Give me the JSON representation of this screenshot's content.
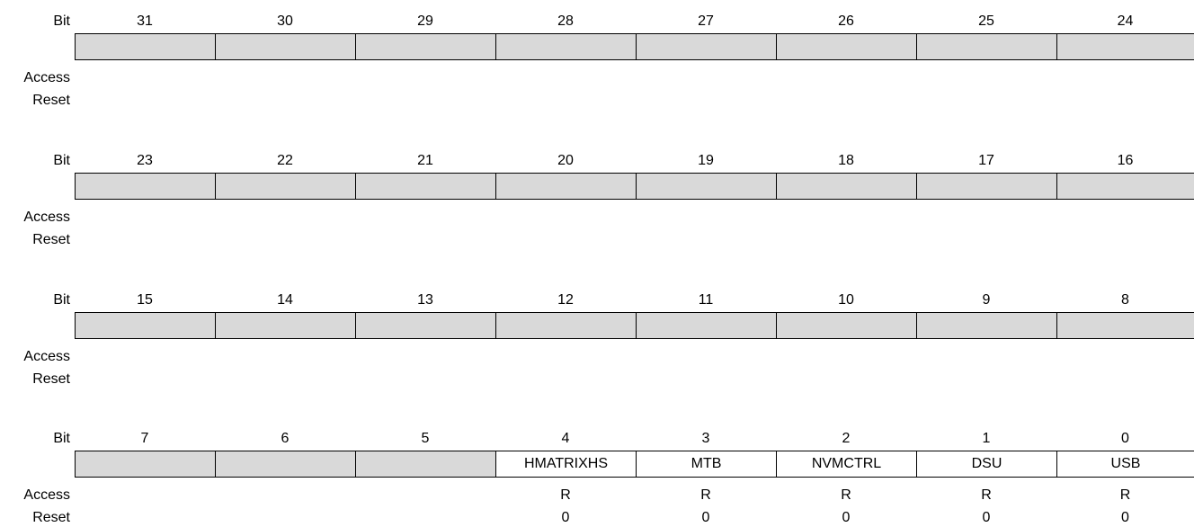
{
  "labels": {
    "bit": "Bit",
    "access": "Access",
    "reset": "Reset"
  },
  "colors": {
    "reserved_fill": "#d9d9d9",
    "field_fill": "#ffffff",
    "border": "#000000"
  },
  "byte_rows": [
    {
      "bits": [
        "31",
        "30",
        "29",
        "28",
        "27",
        "26",
        "25",
        "24"
      ],
      "fields": [
        "",
        "",
        "",
        "",
        "",
        "",
        "",
        ""
      ],
      "access": [
        "",
        "",
        "",
        "",
        "",
        "",
        "",
        ""
      ],
      "reset": [
        "",
        "",
        "",
        "",
        "",
        "",
        "",
        ""
      ]
    },
    {
      "bits": [
        "23",
        "22",
        "21",
        "20",
        "19",
        "18",
        "17",
        "16"
      ],
      "fields": [
        "",
        "",
        "",
        "",
        "",
        "",
        "",
        ""
      ],
      "access": [
        "",
        "",
        "",
        "",
        "",
        "",
        "",
        ""
      ],
      "reset": [
        "",
        "",
        "",
        "",
        "",
        "",
        "",
        ""
      ]
    },
    {
      "bits": [
        "15",
        "14",
        "13",
        "12",
        "11",
        "10",
        "9",
        "8"
      ],
      "fields": [
        "",
        "",
        "",
        "",
        "",
        "",
        "",
        ""
      ],
      "access": [
        "",
        "",
        "",
        "",
        "",
        "",
        "",
        ""
      ],
      "reset": [
        "",
        "",
        "",
        "",
        "",
        "",
        "",
        ""
      ]
    },
    {
      "bits": [
        "7",
        "6",
        "5",
        "4",
        "3",
        "2",
        "1",
        "0"
      ],
      "fields": [
        "",
        "",
        "",
        "HMATRIXHS",
        "MTB",
        "NVMCTRL",
        "DSU",
        "USB"
      ],
      "access": [
        "",
        "",
        "",
        "R",
        "R",
        "R",
        "R",
        "R"
      ],
      "reset": [
        "",
        "",
        "",
        "0",
        "0",
        "0",
        "0",
        "0"
      ]
    }
  ]
}
